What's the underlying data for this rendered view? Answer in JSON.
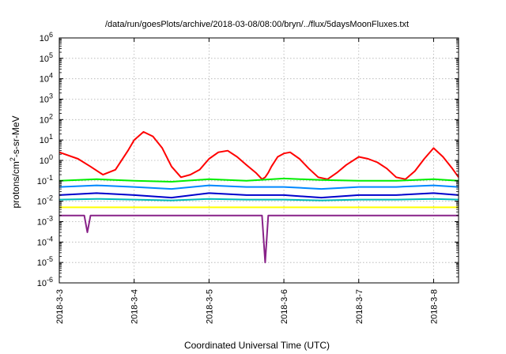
{
  "chart_data": {
    "type": "line",
    "title": "/data/run/goesPlots/archive/2018-03-08/08:00/bryn/../flux/5daysMoonFluxes.txt",
    "xlabel": "Coordinated Universal Time (UTC)",
    "ylabel": {
      "prefix": "protons/cm",
      "sup": "2",
      "suffix": "-s-sr-MeV"
    },
    "yscale": "log",
    "ylim": [
      -6,
      6
    ],
    "ytick_exponents": [
      -6,
      -5,
      -4,
      -3,
      -2,
      -1,
      0,
      1,
      2,
      3,
      4,
      5,
      6
    ],
    "ytick_base": "10",
    "xlim": [
      "2018-03-03T00:00",
      "2018-03-08T08:00"
    ],
    "x_tick_labels": [
      "2018-3-3",
      "2018-3-4",
      "2018-3-5",
      "2018-3-6",
      "2018-3-7",
      "2018-3-8"
    ],
    "grid": true,
    "series": [
      {
        "color": "#ff0000",
        "x": [
          "2018-03-03T00:00",
          "2018-03-03T06:00",
          "2018-03-03T10:00",
          "2018-03-03T14:00",
          "2018-03-03T18:00",
          "2018-03-03T22:00",
          "2018-03-04T00:00",
          "2018-03-04T03:00",
          "2018-03-04T06:00",
          "2018-03-04T09:00",
          "2018-03-04T12:00",
          "2018-03-04T15:00",
          "2018-03-04T18:00",
          "2018-03-04T21:00",
          "2018-03-05T00:00",
          "2018-03-05T03:00",
          "2018-03-05T06:00",
          "2018-03-05T09:00",
          "2018-03-05T12:00",
          "2018-03-05T15:00",
          "2018-03-05T17:00",
          "2018-03-05T18:00",
          "2018-03-05T19:00",
          "2018-03-05T20:00",
          "2018-03-05T22:00",
          "2018-03-06T00:00",
          "2018-03-06T02:00",
          "2018-03-06T05:00",
          "2018-03-06T08:00",
          "2018-03-06T11:00",
          "2018-03-06T14:00",
          "2018-03-06T17:00",
          "2018-03-06T20:00",
          "2018-03-07T00:00",
          "2018-03-07T03:00",
          "2018-03-07T06:00",
          "2018-03-07T09:00",
          "2018-03-07T12:00",
          "2018-03-07T15:00",
          "2018-03-07T18:00",
          "2018-03-07T21:00",
          "2018-03-08T00:00",
          "2018-03-08T03:00",
          "2018-03-08T06:00",
          "2018-03-08T08:00"
        ],
        "y": [
          2.5,
          1.2,
          0.5,
          0.2,
          0.35,
          3,
          10,
          25,
          15,
          4,
          0.5,
          0.15,
          0.2,
          0.35,
          1.2,
          2.5,
          3,
          1.5,
          0.6,
          0.25,
          0.12,
          0.15,
          0.25,
          0.5,
          1.5,
          2.2,
          2.5,
          1.2,
          0.4,
          0.15,
          0.12,
          0.25,
          0.6,
          1.5,
          1.2,
          0.8,
          0.4,
          0.15,
          0.12,
          0.3,
          1.2,
          4,
          1.5,
          0.4,
          0.15
        ]
      },
      {
        "color": "#00ee00",
        "x": [
          "2018-03-03T00:00",
          "2018-03-03T12:00",
          "2018-03-04T00:00",
          "2018-03-04T12:00",
          "2018-03-05T00:00",
          "2018-03-05T12:00",
          "2018-03-06T00:00",
          "2018-03-06T12:00",
          "2018-03-07T00:00",
          "2018-03-07T12:00",
          "2018-03-08T00:00",
          "2018-03-08T08:00"
        ],
        "y": [
          0.1,
          0.12,
          0.1,
          0.09,
          0.12,
          0.1,
          0.13,
          0.11,
          0.1,
          0.1,
          0.12,
          0.1
        ]
      },
      {
        "color": "#0088ff",
        "x": [
          "2018-03-03T00:00",
          "2018-03-03T12:00",
          "2018-03-04T00:00",
          "2018-03-04T12:00",
          "2018-03-05T00:00",
          "2018-03-05T12:00",
          "2018-03-06T00:00",
          "2018-03-06T12:00",
          "2018-03-07T00:00",
          "2018-03-07T12:00",
          "2018-03-08T00:00",
          "2018-03-08T08:00"
        ],
        "y": [
          0.05,
          0.06,
          0.05,
          0.04,
          0.06,
          0.05,
          0.05,
          0.04,
          0.05,
          0.05,
          0.06,
          0.05
        ]
      },
      {
        "color": "#0000cc",
        "x": [
          "2018-03-03T00:00",
          "2018-03-03T12:00",
          "2018-03-04T00:00",
          "2018-03-04T12:00",
          "2018-03-05T00:00",
          "2018-03-05T12:00",
          "2018-03-06T00:00",
          "2018-03-06T12:00",
          "2018-03-07T00:00",
          "2018-03-07T12:00",
          "2018-03-08T00:00",
          "2018-03-08T08:00"
        ],
        "y": [
          0.02,
          0.025,
          0.02,
          0.015,
          0.025,
          0.02,
          0.02,
          0.015,
          0.02,
          0.02,
          0.025,
          0.02
        ]
      },
      {
        "color": "#00bbbb",
        "x": [
          "2018-03-03T00:00",
          "2018-03-03T12:00",
          "2018-03-04T00:00",
          "2018-03-04T12:00",
          "2018-03-05T00:00",
          "2018-03-05T12:00",
          "2018-03-06T00:00",
          "2018-03-06T12:00",
          "2018-03-07T00:00",
          "2018-03-07T12:00",
          "2018-03-08T00:00",
          "2018-03-08T08:00"
        ],
        "y": [
          0.012,
          0.013,
          0.012,
          0.011,
          0.013,
          0.012,
          0.012,
          0.011,
          0.012,
          0.012,
          0.013,
          0.012
        ]
      },
      {
        "color": "#ffff00",
        "x": [
          "2018-03-03T00:00",
          "2018-03-03T12:00",
          "2018-03-04T00:00",
          "2018-03-04T12:00",
          "2018-03-05T00:00",
          "2018-03-05T12:00",
          "2018-03-06T00:00",
          "2018-03-06T12:00",
          "2018-03-07T00:00",
          "2018-03-07T12:00",
          "2018-03-08T00:00",
          "2018-03-08T08:00"
        ],
        "y": [
          0.005,
          0.005,
          0.005,
          0.005,
          0.005,
          0.005,
          0.005,
          0.005,
          0.005,
          0.005,
          0.005,
          0.005
        ]
      },
      {
        "color": "#882288",
        "x": [
          "2018-03-03T00:00",
          "2018-03-03T08:00",
          "2018-03-03T09:00",
          "2018-03-03T10:00",
          "2018-03-04T00:00",
          "2018-03-04T12:00",
          "2018-03-05T00:00",
          "2018-03-05T12:00",
          "2018-03-05T17:00",
          "2018-03-05T18:00",
          "2018-03-05T19:00",
          "2018-03-06T00:00",
          "2018-03-06T12:00",
          "2018-03-07T00:00",
          "2018-03-07T12:00",
          "2018-03-08T00:00",
          "2018-03-08T08:00"
        ],
        "y": [
          0.002,
          0.002,
          0.0003,
          0.002,
          0.002,
          0.002,
          0.002,
          0.002,
          0.002,
          1e-05,
          0.002,
          0.002,
          0.002,
          0.002,
          0.002,
          0.002,
          0.002
        ]
      }
    ]
  }
}
